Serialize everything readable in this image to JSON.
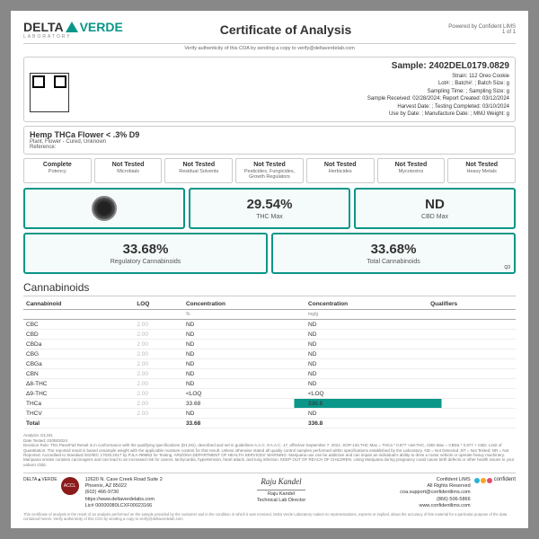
{
  "header": {
    "brand1": "DELTA",
    "brand2": "VERDE",
    "sub": "LABORATORY",
    "title": "Certificate of Analysis",
    "powered": "Powered by Confident LIMS",
    "page": "1 of 1",
    "verify": "Verify authenticity of this COA by sending a copy to verify@deltaverdelab.com"
  },
  "sample": {
    "title": "Sample: 2402DEL0179.0829",
    "strain": "Strain: 112 Oreo Cookie",
    "lot": "Lot#: ; Batch#: ; Batch Size: g",
    "time": "Sampling Time: ; Sampling Size: g",
    "recv": "Sample Received: 02/28/2024; Report Created: 03/12/2024",
    "harvest": "Harvest Date: ; Testing Completed: 03/10/2024",
    "use": "Use by Date: ; Manufacture Date: ; MMJ Weight: g"
  },
  "product": {
    "title": "Hemp THCa Flower < .3% D9",
    "sub": "Plant, Flower - Cured, Unknown",
    "ref": "Reference:"
  },
  "tests": [
    {
      "st": "Complete",
      "nm": "Potency"
    },
    {
      "st": "Not Tested",
      "nm": "Microbials"
    },
    {
      "st": "Not Tested",
      "nm": "Residual Solvents"
    },
    {
      "st": "Not Tested",
      "nm": "Pesticides, Fungicides, Growth Regulators"
    },
    {
      "st": "Not Tested",
      "nm": "Herbicides"
    },
    {
      "st": "Not Tested",
      "nm": "Mycotoxins"
    },
    {
      "st": "Not Tested",
      "nm": "Heavy Metals"
    }
  ],
  "metrics": {
    "thc_max": "29.54%",
    "thc_lab": "THC Max",
    "cbd_max": "ND",
    "cbd_lab": "CBD Max",
    "reg": "33.68%",
    "reg_lab": "Regulatory Cannabinoids",
    "tot": "33.68%",
    "tot_lab": "Total Cannabinoids",
    "note": "Q3"
  },
  "table": {
    "title": "Cannabinoids",
    "cols": [
      "Cannabinoid",
      "LOQ",
      "Concentration",
      "Concentration",
      "Qualifiers"
    ],
    "units": [
      "",
      "",
      "%",
      "mg/g",
      ""
    ],
    "rows": [
      [
        "CBC",
        "2.00",
        "ND",
        "ND",
        ""
      ],
      [
        "CBD",
        "2.00",
        "ND",
        "ND",
        ""
      ],
      [
        "CBDa",
        "2.00",
        "ND",
        "ND",
        ""
      ],
      [
        "CBG",
        "2.00",
        "ND",
        "ND",
        ""
      ],
      [
        "CBGa",
        "2.00",
        "ND",
        "ND",
        ""
      ],
      [
        "CBN",
        "2.00",
        "ND",
        "ND",
        ""
      ],
      [
        "Δ8-THC",
        "2.00",
        "ND",
        "ND",
        ""
      ],
      [
        "Δ9-THC",
        "2.00",
        "<LOQ",
        "<LOQ",
        ""
      ],
      [
        "THCa",
        "2.00",
        "33.68",
        "336.8",
        ""
      ],
      [
        "THCV",
        "2.00",
        "ND",
        "ND",
        ""
      ]
    ],
    "total": [
      "Total",
      "",
      "33.68",
      "336.8",
      ""
    ]
  },
  "fine": {
    "analysis": "Analysis: D1,M1",
    "date": "Date Tested: 03/08/2024",
    "txt": "Decision Rule: This Pass/Fail Result is in conformance with the qualifying specifications (D1,M1), described and set in guidelines A.A.C. 9 A.A.C. 17, effective September 7, 2021. SOP-134.THC Max = THCa * 0.877 +Δ9-THC, CBD Max = CBDa * 0.877 + CBD. Limit of Quantitation: The reported result is based onsample weight with the applicable moisture content for that result. Unless otherwise stated all quality control samples performed within specifications established by the Laboratory. ND = Not Detected ;NT = Not Tested; NR = Not Reported. Accredited to Standard ISO/IEC 17025:2017 by PJLA #89963 for Testing. ARIZONA DEPARTMENT OF HEALTH SERVICES' WARNING: Marijuana use can be addictive and can impair an individual's ability to drive a motor vehicle or operate heavy machinery. Marijuana smoke contains carcinogens and can lead to an increased risk for cancer, tachycardia, hypertension, heart attack, and lung infection. KEEP OUT OF REACH OF CHILDREN. Using Marijuana during pregnancy could cause birth defects or other health issues to your unborn child."
  },
  "footer": {
    "left": {
      "addr1": "12620 N. Cave Creek Road Suite 2",
      "addr2": "Phoenix, AZ 85022",
      "phone": "(602) 466-9730",
      "web": "https://www.deltaverdelabs.com",
      "lic": "Lic# 00000080LCXF00023166"
    },
    "sig": {
      "name": "Raju Kandel",
      "role": "Technical Lab Director"
    },
    "right": {
      "name": "Confident LIMS",
      "rights": "All Rights Reserved",
      "email": "coa.support@confidentlims.com",
      "phone": "(866) 506-5866",
      "web": "www.confidentlims.com"
    }
  },
  "legal": "This certificate of analysis is the result of an analysis performed on the sample provided by the customer and in the condition in which it was received. Delta Verde Laboratory makes no representations, express or implied, about the accuracy of this material for a particular purpose of the data contained herein. Verify authenticity of this COA by sending a copy to verify@deltaverdelab.com",
  "colors": {
    "accent": "#0a9688"
  }
}
